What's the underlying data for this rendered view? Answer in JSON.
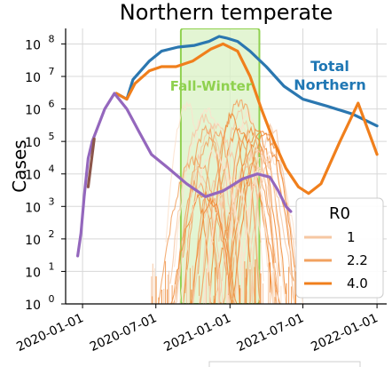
{
  "chart_data": {
    "type": "line",
    "title": "Northern temperate",
    "xlabel": "",
    "ylabel": "Cases",
    "yscale": "log",
    "ylim": [
      1,
      300000000
    ],
    "xlim": [
      "2019-11-20",
      "2022-01-25"
    ],
    "x_ticks": [
      "2020-01-01",
      "2020-07-01",
      "2021-01-01",
      "2021-07-01",
      "2022-01-01"
    ],
    "y_ticks": [
      {
        "value": 1,
        "base": "10",
        "exp": "0"
      },
      {
        "value": 10,
        "base": "10",
        "exp": "1"
      },
      {
        "value": 100,
        "base": "10",
        "exp": "2"
      },
      {
        "value": 1000,
        "base": "10",
        "exp": "3"
      },
      {
        "value": 10000,
        "base": "10",
        "exp": "4"
      },
      {
        "value": 100000,
        "base": "10",
        "exp": "5"
      },
      {
        "value": 1000000,
        "base": "10",
        "exp": "6"
      },
      {
        "value": 10000000,
        "base": "10",
        "exp": "7"
      },
      {
        "value": 100000000,
        "base": "10",
        "exp": "8"
      }
    ],
    "grid": true,
    "shaded_region": {
      "label": "Fall-Winter",
      "start": "2020-09-01",
      "end": "2021-03-15",
      "color": "#d9f2c4",
      "edge": "#8fd14f",
      "text_color": "#8fd14f"
    },
    "annotations": [
      {
        "text_lines": [
          "Total",
          "Northern"
        ],
        "color": "#1f77b4"
      }
    ],
    "legend": {
      "title": "R0",
      "position": "lower-right",
      "entries": [
        {
          "label": "1",
          "color": "#f6c7a3"
        },
        {
          "label": "2.2",
          "color": "#f2a15f"
        },
        {
          "label": "4.0",
          "color": "#f07f1c"
        }
      ]
    },
    "series": [
      {
        "name": "Total Northern",
        "color": "#2b77b0",
        "points": [
          [
            "2020-03-25",
            3000000
          ],
          [
            "2020-04-20",
            2000000
          ],
          [
            "2020-05-05",
            8000000
          ],
          [
            "2020-06-15",
            30000000
          ],
          [
            "2020-07-15",
            60000000
          ],
          [
            "2020-08-25",
            80000000
          ],
          [
            "2020-10-05",
            90000000
          ],
          [
            "2020-11-10",
            120000000
          ],
          [
            "2020-12-05",
            170000000
          ],
          [
            "2020-12-25",
            150000000
          ],
          [
            "2021-01-20",
            120000000
          ],
          [
            "2021-02-20",
            60000000
          ],
          [
            "2021-04-01",
            20000000
          ],
          [
            "2021-05-15",
            5000000
          ],
          [
            "2021-07-01",
            2000000
          ],
          [
            "2021-09-01",
            1200000
          ],
          [
            "2021-11-01",
            700000
          ],
          [
            "2022-01-01",
            300000
          ]
        ]
      },
      {
        "color": "#f07f1c",
        "points": [
          [
            "2020-03-25",
            3000000
          ],
          [
            "2020-04-20",
            2000000
          ],
          [
            "2020-05-10",
            6000000
          ],
          [
            "2020-06-15",
            15000000
          ],
          [
            "2020-07-15",
            20000000
          ],
          [
            "2020-08-20",
            20000000
          ],
          [
            "2020-10-01",
            30000000
          ],
          [
            "2020-11-15",
            70000000
          ],
          [
            "2020-12-15",
            100000000
          ],
          [
            "2021-01-20",
            60000000
          ],
          [
            "2021-02-20",
            10000000
          ],
          [
            "2021-03-20",
            1000000
          ],
          [
            "2021-04-20",
            100000
          ],
          [
            "2021-05-20",
            15000
          ],
          [
            "2021-06-20",
            4000
          ],
          [
            "2021-07-15",
            2500
          ],
          [
            "2021-08-15",
            5000
          ],
          [
            "2021-10-01",
            100000
          ],
          [
            "2021-11-15",
            1500000
          ],
          [
            "2022-01-01",
            40000
          ]
        ]
      },
      {
        "color": "#9467bd",
        "points": [
          [
            "2020-01-25",
            100000
          ],
          [
            "2020-02-25",
            1000000
          ],
          [
            "2020-03-20",
            3000000
          ],
          [
            "2020-04-20",
            1000000
          ],
          [
            "2020-05-20",
            200000
          ],
          [
            "2020-06-20",
            40000
          ],
          [
            "2020-08-01",
            15000
          ],
          [
            "2020-09-15",
            5000
          ],
          [
            "2020-11-01",
            2000
          ],
          [
            "2020-12-15",
            3000
          ],
          [
            "2021-02-01",
            7000
          ],
          [
            "2021-03-10",
            10000
          ],
          [
            "2021-04-10",
            8000
          ],
          [
            "2021-05-01",
            3000
          ],
          [
            "2021-05-20",
            1000
          ],
          [
            "2021-06-01",
            700
          ]
        ]
      },
      {
        "color": "#9467bd",
        "points": [
          [
            "2019-12-20",
            30
          ],
          [
            "2019-12-28",
            150
          ],
          [
            "2020-01-05",
            2000
          ],
          [
            "2020-01-15",
            30000
          ],
          [
            "2020-01-25",
            100000
          ]
        ]
      },
      {
        "color": "#8c564b",
        "points": [
          [
            "2020-01-15",
            4000
          ],
          [
            "2020-01-22",
            20000
          ],
          [
            "2020-01-30",
            120000
          ]
        ]
      }
    ]
  }
}
